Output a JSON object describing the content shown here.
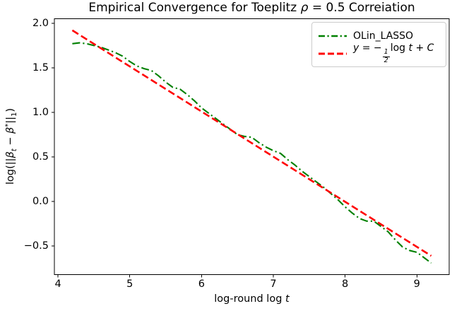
{
  "figure": {
    "title": {
      "pre": "Empirical Convergence for Toeplitz ",
      "rho": "ρ",
      "post": " = 0.5 Correiation"
    },
    "xlabel": {
      "pre": "log-round log ",
      "var": "t"
    },
    "ylabel": {
      "open": "log(||",
      "beta_t": "β",
      "sub_t": "t",
      "minus": " − ",
      "beta_star": "β",
      "sup_star": "*",
      "bars": "||",
      "sub_one": "1",
      "close": ")"
    }
  },
  "legend": {
    "item1_label": "OLin_LASSO",
    "item2": {
      "y": "y",
      "eq": " = −",
      "num": "1",
      "den": "2",
      "log": "log ",
      "t": "t",
      "plus": " + ",
      "c": "C"
    }
  },
  "axes": {
    "x_tick_labels": [
      "4",
      "5",
      "6",
      "7",
      "8",
      "9"
    ],
    "y_tick_labels": [
      "2.0",
      "1.5",
      "1.0",
      "0.5",
      "0.0",
      "−0.5"
    ]
  },
  "chart_data": {
    "type": "line",
    "title": "Empirical Convergence for Toeplitz ρ = 0.5 Correiation",
    "xlabel": "log-round log t",
    "ylabel": "log(||β_t − β*||_1)",
    "xlim": [
      3.95,
      9.45
    ],
    "ylim": [
      -0.82,
      2.05
    ],
    "x_ticks": [
      4,
      5,
      6,
      7,
      8,
      9
    ],
    "y_ticks": [
      2.0,
      1.5,
      1.0,
      0.5,
      0.0,
      -0.5
    ],
    "grid": false,
    "legend_position": "upper right",
    "series": [
      {
        "name": "OLin_LASSO",
        "color": "#008000",
        "line_style": "dashdot",
        "line_width": 2.1,
        "x": [
          4.2,
          4.3,
          4.4,
          4.5,
          4.6,
          4.7,
          4.8,
          4.9,
          5.0,
          5.1,
          5.2,
          5.3,
          5.4,
          5.5,
          5.6,
          5.7,
          5.8,
          5.9,
          6.0,
          6.1,
          6.2,
          6.3,
          6.4,
          6.5,
          6.6,
          6.7,
          6.8,
          6.9,
          7.0,
          7.1,
          7.2,
          7.3,
          7.4,
          7.5,
          7.6,
          7.7,
          7.8,
          7.9,
          8.0,
          8.1,
          8.2,
          8.3,
          8.4,
          8.5,
          8.6,
          8.7,
          8.8,
          8.9,
          9.0,
          9.1,
          9.2
        ],
        "y": [
          1.77,
          1.78,
          1.77,
          1.75,
          1.73,
          1.7,
          1.67,
          1.63,
          1.57,
          1.52,
          1.49,
          1.47,
          1.41,
          1.34,
          1.28,
          1.26,
          1.2,
          1.13,
          1.05,
          0.99,
          0.93,
          0.87,
          0.81,
          0.75,
          0.73,
          0.72,
          0.66,
          0.61,
          0.57,
          0.54,
          0.47,
          0.41,
          0.34,
          0.28,
          0.22,
          0.16,
          0.09,
          0.02,
          -0.06,
          -0.13,
          -0.19,
          -0.22,
          -0.22,
          -0.28,
          -0.34,
          -0.43,
          -0.51,
          -0.55,
          -0.57,
          -0.63,
          -0.69
        ]
      },
      {
        "name": "y = −(1/2) log t + C",
        "color": "#ff0000",
        "line_style": "dashed",
        "line_width": 2.6,
        "equation": "y = −0.5x + 4.0",
        "x": [
          4.2,
          9.2
        ],
        "y": [
          1.92,
          -0.61
        ]
      }
    ]
  }
}
